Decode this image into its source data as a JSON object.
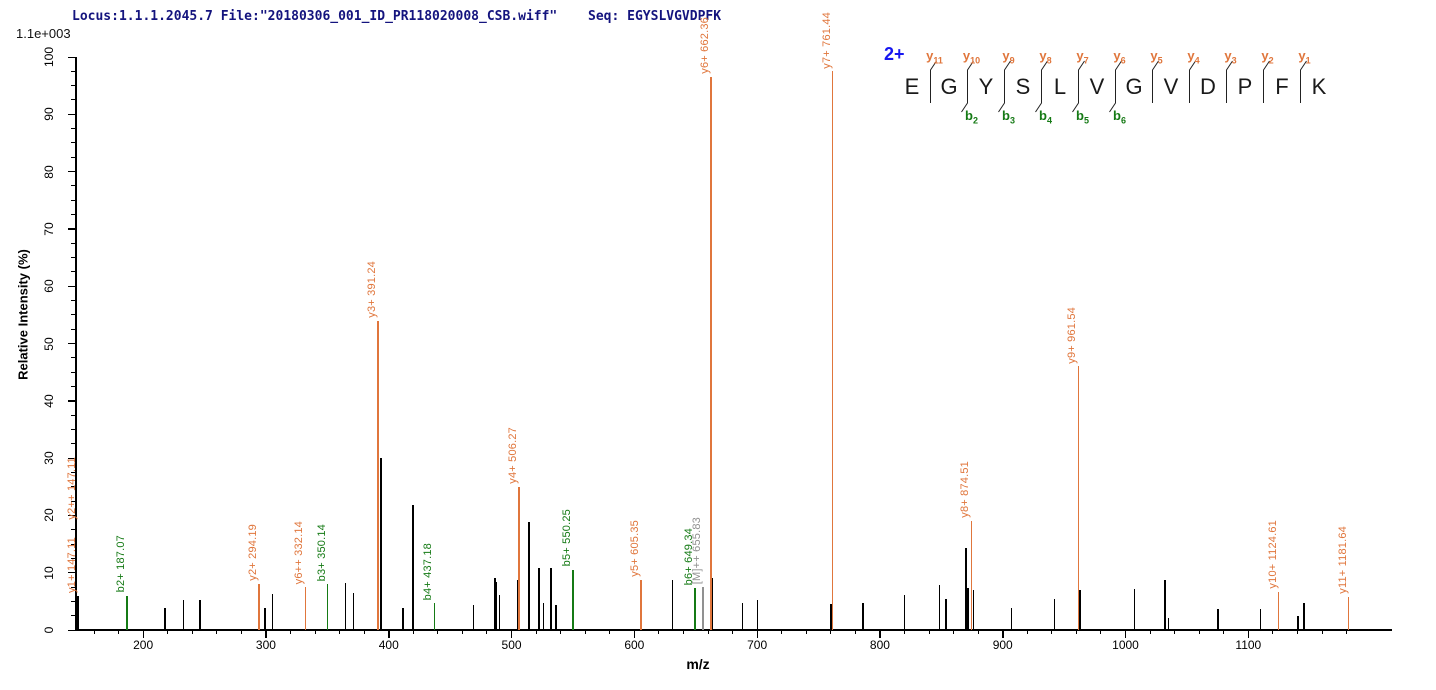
{
  "header": {
    "locus_file": "Locus:1.1.1.2045.7 File:\"20180306_001_ID_PR118020008_CSB.wiff\"",
    "seq_label": "Seq: EGYSLVGVDPFK"
  },
  "axes": {
    "y_scale_note": "1.1e+003",
    "y_label": "Relative  Intensity (%)",
    "x_label": "m/z",
    "x_tick_labels": [
      200,
      300,
      400,
      500,
      600,
      700,
      800,
      900,
      1000,
      1100
    ],
    "y_tick_labels": [
      0,
      10,
      20,
      30,
      40,
      50,
      60,
      70,
      80,
      90,
      100
    ],
    "x_minor_step": 20,
    "y_minor_step": 2.5
  },
  "colors": {
    "orange": "#e0763c",
    "green": "#157a15",
    "gray": "#919191",
    "black": "#000000",
    "navy": "#14147e",
    "blue": "#1616f0"
  },
  "sequence_panel": {
    "charge": "2+",
    "residues": [
      "E",
      "G",
      "Y",
      "S",
      "L",
      "V",
      "G",
      "V",
      "D",
      "P",
      "F",
      "K"
    ],
    "y_ions": [
      {
        "gap": 0,
        "series": "y",
        "num": "11"
      },
      {
        "gap": 1,
        "series": "y",
        "num": "10"
      },
      {
        "gap": 2,
        "series": "y",
        "num": "9"
      },
      {
        "gap": 3,
        "series": "y",
        "num": "8"
      },
      {
        "gap": 4,
        "series": "y",
        "num": "7"
      },
      {
        "gap": 5,
        "series": "y",
        "num": "6"
      },
      {
        "gap": 6,
        "series": "y",
        "num": "5"
      },
      {
        "gap": 7,
        "series": "y",
        "num": "4"
      },
      {
        "gap": 8,
        "series": "y",
        "num": "3"
      },
      {
        "gap": 9,
        "series": "y",
        "num": "2"
      },
      {
        "gap": 10,
        "series": "y",
        "num": "1"
      }
    ],
    "b_ions": [
      {
        "gap": 1,
        "series": "b",
        "num": "2"
      },
      {
        "gap": 2,
        "series": "b",
        "num": "3"
      },
      {
        "gap": 3,
        "series": "b",
        "num": "4"
      },
      {
        "gap": 4,
        "series": "b",
        "num": "5"
      },
      {
        "gap": 5,
        "series": "b",
        "num": "6"
      }
    ]
  },
  "chart_data": {
    "type": "bar",
    "subtype": "ms2-centroid-spectrum",
    "title": "Locus:1.1.1.2045.7 File:\"20180306_001_ID_PR118020008_CSB.wiff\" Seq: EGYSLVGVDPFK",
    "xlabel": "m/z",
    "ylabel": "Relative Intensity (%)",
    "xlim": [
      144.5,
      1217
    ],
    "ylim": [
      0,
      100
    ],
    "max_absolute_intensity": "1.1e+003",
    "precursor_charge": "2+",
    "peptide": "EGYSLVGVDPFK",
    "peaks": [
      {
        "mz": 147.11,
        "intensity": 6.0,
        "color": "black",
        "labels": [
          {
            "text": "y1+ 147.11",
            "color": "orange"
          },
          {
            "text": "y2++ 147.11",
            "color": "orange"
          }
        ]
      },
      {
        "mz": 187.07,
        "intensity": 6.0,
        "color": "green",
        "labels": [
          {
            "text": "b2+ 187.07",
            "color": "green"
          }
        ]
      },
      {
        "mz": 218.0,
        "intensity": 3.8,
        "color": "black",
        "labels": []
      },
      {
        "mz": 233.0,
        "intensity": 5.3,
        "color": "black",
        "labels": []
      },
      {
        "mz": 246.5,
        "intensity": 5.3,
        "color": "black",
        "labels": []
      },
      {
        "mz": 294.19,
        "intensity": 8.0,
        "color": "orange",
        "labels": [
          {
            "text": "y2+ 294.19",
            "color": "orange"
          }
        ]
      },
      {
        "mz": 299.0,
        "intensity": 3.8,
        "color": "black",
        "labels": []
      },
      {
        "mz": 305.5,
        "intensity": 6.2,
        "color": "black",
        "labels": []
      },
      {
        "mz": 332.14,
        "intensity": 7.5,
        "color": "orange",
        "labels": [
          {
            "text": "y6++ 332.14",
            "color": "orange"
          }
        ]
      },
      {
        "mz": 350.14,
        "intensity": 8.0,
        "color": "green",
        "labels": [
          {
            "text": "b3+ 350.14",
            "color": "green"
          }
        ]
      },
      {
        "mz": 364.7,
        "intensity": 8.2,
        "color": "black",
        "labels": []
      },
      {
        "mz": 371.2,
        "intensity": 6.5,
        "color": "black",
        "labels": []
      },
      {
        "mz": 391.24,
        "intensity": 54.0,
        "color": "orange",
        "labels": [
          {
            "text": "y3+ 391.24",
            "color": "orange"
          }
        ]
      },
      {
        "mz": 393.5,
        "intensity": 30.0,
        "color": "black",
        "labels": []
      },
      {
        "mz": 411.8,
        "intensity": 3.8,
        "color": "black",
        "labels": []
      },
      {
        "mz": 419.6,
        "intensity": 21.8,
        "color": "black",
        "labels": []
      },
      {
        "mz": 437.18,
        "intensity": 4.7,
        "color": "green",
        "labels": [
          {
            "text": "b4+ 437.18",
            "color": "green"
          }
        ]
      },
      {
        "mz": 468.9,
        "intensity": 4.4,
        "color": "black",
        "labels": []
      },
      {
        "mz": 486.3,
        "intensity": 9.1,
        "color": "black",
        "labels": []
      },
      {
        "mz": 487.8,
        "intensity": 8.4,
        "color": "black",
        "labels": []
      },
      {
        "mz": 490.2,
        "intensity": 6.1,
        "color": "black",
        "labels": []
      },
      {
        "mz": 505.0,
        "intensity": 8.7,
        "color": "black",
        "labels": []
      },
      {
        "mz": 506.27,
        "intensity": 25.0,
        "color": "orange",
        "labels": [
          {
            "text": "y4+ 506.27",
            "color": "orange"
          }
        ]
      },
      {
        "mz": 514.2,
        "intensity": 18.8,
        "color": "black",
        "labels": []
      },
      {
        "mz": 522.4,
        "intensity": 10.8,
        "color": "black",
        "labels": []
      },
      {
        "mz": 525.9,
        "intensity": 4.7,
        "color": "black",
        "labels": []
      },
      {
        "mz": 531.9,
        "intensity": 10.8,
        "color": "black",
        "labels": []
      },
      {
        "mz": 536.0,
        "intensity": 4.4,
        "color": "black",
        "labels": []
      },
      {
        "mz": 550.25,
        "intensity": 10.5,
        "color": "green",
        "labels": [
          {
            "text": "b5+ 550.25",
            "color": "green"
          }
        ]
      },
      {
        "mz": 605.35,
        "intensity": 8.7,
        "color": "orange",
        "labels": [
          {
            "text": "y5+ 605.35",
            "color": "orange"
          }
        ]
      },
      {
        "mz": 631.1,
        "intensity": 8.7,
        "color": "black",
        "labels": []
      },
      {
        "mz": 649.34,
        "intensity": 7.3,
        "color": "green",
        "labels": [
          {
            "text": "b6+ 649.34",
            "color": "green"
          }
        ]
      },
      {
        "mz": 655.83,
        "intensity": 7.5,
        "color": "gray",
        "labels": [
          {
            "text": "[M]++ 655.83",
            "color": "gray"
          }
        ]
      },
      {
        "mz": 662.36,
        "intensity": 96.5,
        "color": "orange",
        "labels": [
          {
            "text": "y6+ 662.36",
            "color": "orange"
          }
        ]
      },
      {
        "mz": 663.8,
        "intensity": 9.0,
        "color": "black",
        "labels": []
      },
      {
        "mz": 688.0,
        "intensity": 4.7,
        "color": "black",
        "labels": []
      },
      {
        "mz": 700.4,
        "intensity": 5.2,
        "color": "black",
        "labels": []
      },
      {
        "mz": 760.2,
        "intensity": 4.5,
        "color": "black",
        "labels": []
      },
      {
        "mz": 761.44,
        "intensity": 97.5,
        "color": "orange",
        "labels": [
          {
            "text": "y7+ 761.44",
            "color": "orange"
          }
        ]
      },
      {
        "mz": 786.1,
        "intensity": 4.7,
        "color": "black",
        "labels": []
      },
      {
        "mz": 820.0,
        "intensity": 6.1,
        "color": "black",
        "labels": []
      },
      {
        "mz": 848.5,
        "intensity": 7.9,
        "color": "black",
        "labels": []
      },
      {
        "mz": 854.0,
        "intensity": 5.4,
        "color": "black",
        "labels": []
      },
      {
        "mz": 870.2,
        "intensity": 14.3,
        "color": "black",
        "labels": []
      },
      {
        "mz": 871.8,
        "intensity": 7.3,
        "color": "black",
        "labels": []
      },
      {
        "mz": 874.51,
        "intensity": 19.0,
        "color": "orange",
        "labels": [
          {
            "text": "y8+ 874.51",
            "color": "orange"
          }
        ]
      },
      {
        "mz": 876.2,
        "intensity": 7.0,
        "color": "black",
        "labels": []
      },
      {
        "mz": 907.0,
        "intensity": 3.8,
        "color": "black",
        "labels": []
      },
      {
        "mz": 942.0,
        "intensity": 5.4,
        "color": "black",
        "labels": []
      },
      {
        "mz": 961.54,
        "intensity": 46.0,
        "color": "orange",
        "labels": [
          {
            "text": "y9+ 961.54",
            "color": "orange"
          }
        ]
      },
      {
        "mz": 963.0,
        "intensity": 7.0,
        "color": "black",
        "labels": []
      },
      {
        "mz": 1007.3,
        "intensity": 7.1,
        "color": "black",
        "labels": []
      },
      {
        "mz": 1032.3,
        "intensity": 8.8,
        "color": "black",
        "labels": []
      },
      {
        "mz": 1035.0,
        "intensity": 2.1,
        "color": "black",
        "labels": []
      },
      {
        "mz": 1075.3,
        "intensity": 3.6,
        "color": "black",
        "labels": []
      },
      {
        "mz": 1110.0,
        "intensity": 3.7,
        "color": "black",
        "labels": []
      },
      {
        "mz": 1124.61,
        "intensity": 6.7,
        "color": "orange",
        "labels": [
          {
            "text": "y10+ 1124.61",
            "color": "orange"
          }
        ]
      },
      {
        "mz": 1140.6,
        "intensity": 2.5,
        "color": "black",
        "labels": []
      },
      {
        "mz": 1145.5,
        "intensity": 4.7,
        "color": "black",
        "labels": []
      },
      {
        "mz": 1181.64,
        "intensity": 5.8,
        "color": "orange",
        "labels": [
          {
            "text": "y11+ 1181.64",
            "color": "orange"
          }
        ]
      }
    ]
  }
}
